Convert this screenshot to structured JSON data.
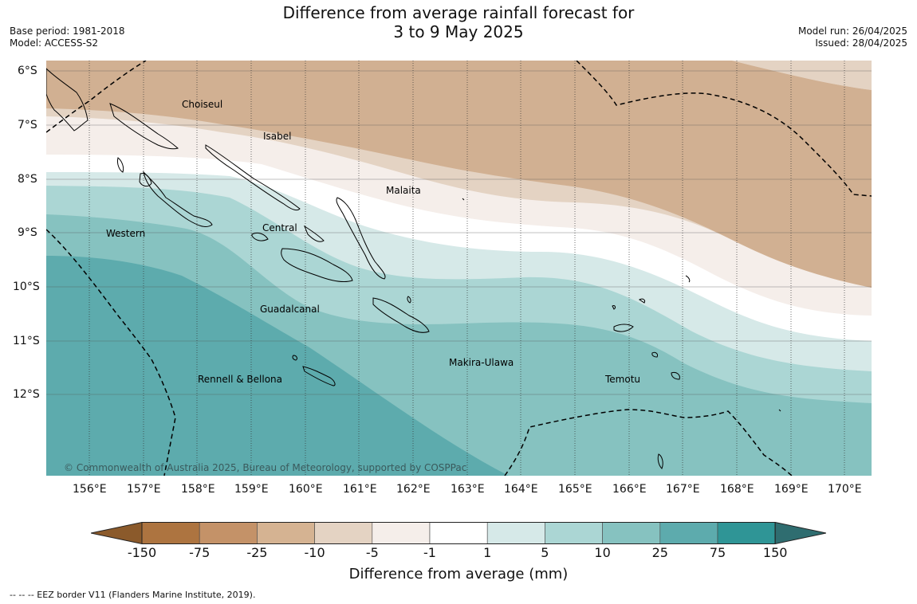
{
  "header": {
    "title_line1": "Difference from average rainfall forecast for",
    "title_line2": "3 to 9 May 2025",
    "base_period": "Base period: 1981-2018",
    "model": "Model: ACCESS-S2",
    "model_run": "Model run: 26/04/2025",
    "issued": "Issued: 28/04/2025"
  },
  "map": {
    "lat_labels": [
      "6°S",
      "7°S",
      "8°S",
      "9°S",
      "10°S",
      "11°S",
      "12°S"
    ],
    "lon_labels": [
      "156°E",
      "157°E",
      "158°E",
      "159°E",
      "160°E",
      "161°E",
      "162°E",
      "163°E",
      "164°E",
      "165°E",
      "166°E",
      "167°E",
      "168°E",
      "169°E",
      "170°E"
    ],
    "regions": [
      "Choiseul",
      "Isabel",
      "Malaita",
      "Western",
      "Central",
      "Guadalcanal",
      "Makira-Ulawa",
      "Temotu",
      "Rennell & Bellona"
    ],
    "copyright": "© Commonwealth of Australia 2025, Bureau of Meteorology, supported by COSPPac"
  },
  "colorbar": {
    "title": "Difference from average (mm)",
    "ticks": [
      "-150",
      "-75",
      "-25",
      "-10",
      "-5",
      "-1",
      "1",
      "5",
      "10",
      "25",
      "75",
      "150"
    ],
    "colors": [
      "#8b5a2b",
      "#ad7440",
      "#c49268",
      "#d5b392",
      "#e4d3c3",
      "#f5eeea",
      "#ffffff",
      "#d6e9e8",
      "#abd6d4",
      "#86c2c0",
      "#5dabad",
      "#2f9596",
      "#2f6d70"
    ]
  },
  "footer": {
    "legend": "--  --  -- EEZ border V11 (Flanders Marine Institute, 2019)."
  }
}
